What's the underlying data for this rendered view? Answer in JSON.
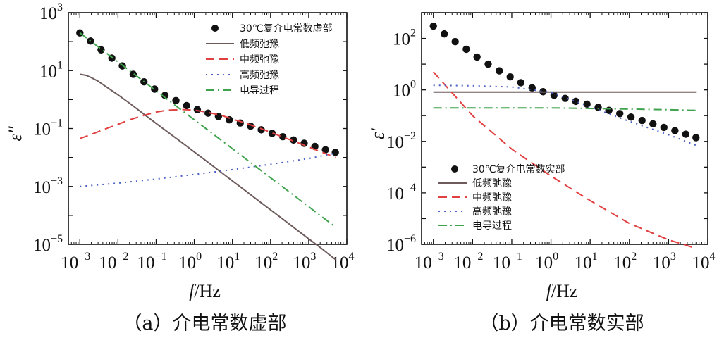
{
  "chart_data": [
    {
      "type": "line",
      "caption": "（a）介电常数虚部",
      "xlabel": "f/Hz",
      "ylabel": "ε″",
      "xscale": "log",
      "yscale": "log",
      "xlim": [
        0.0005,
        10000
      ],
      "ylim": [
        1e-05,
        1000
      ],
      "xticks": [
        {
          "base": "10",
          "exp": "−3"
        },
        {
          "base": "10",
          "exp": "−2"
        },
        {
          "base": "10",
          "exp": "−1"
        },
        {
          "base": "10",
          "exp": "0"
        },
        {
          "base": "10",
          "exp": "1"
        },
        {
          "base": "10",
          "exp": "2"
        },
        {
          "base": "10",
          "exp": "3"
        },
        {
          "base": "10",
          "exp": "4"
        }
      ],
      "yticks": [
        {
          "base": "10",
          "exp": "−5"
        },
        {
          "base": "10",
          "exp": "−3"
        },
        {
          "base": "10",
          "exp": "−1"
        },
        {
          "base": "10",
          "exp": "1"
        },
        {
          "base": "10",
          "exp": "3"
        }
      ],
      "legend_position": "top-right",
      "series": [
        {
          "name": "30℃复介电常数虚部",
          "style": "dots",
          "color": "#111111",
          "x": [
            0.001,
            0.0019,
            0.0036,
            0.0069,
            0.013,
            0.025,
            0.048,
            0.091,
            0.17,
            0.33,
            0.63,
            1.2,
            2.3,
            4.3,
            8.3,
            16,
            30,
            57,
            110,
            210,
            400,
            760,
            1450,
            2750,
            5000
          ],
          "y": [
            200,
            105,
            52,
            27,
            14.5,
            7.5,
            4.1,
            2.3,
            1.4,
            0.92,
            0.62,
            0.45,
            0.34,
            0.26,
            0.2,
            0.155,
            0.12,
            0.09,
            0.068,
            0.052,
            0.04,
            0.031,
            0.024,
            0.0185,
            0.015
          ]
        },
        {
          "name": "低频弛豫",
          "style": "solid",
          "color": "#6e5c5c",
          "x": [
            0.001,
            0.0015,
            0.002,
            0.003,
            0.005,
            0.01,
            0.02,
            0.05,
            0.1,
            0.2,
            0.5,
            1,
            2,
            5,
            10,
            20,
            50,
            100,
            200,
            500,
            1000,
            2000,
            5000
          ],
          "y": [
            7.5,
            6.8,
            5.7,
            4.3,
            2.7,
            1.45,
            0.75,
            0.3,
            0.15,
            0.076,
            0.031,
            0.0155,
            0.0078,
            0.0031,
            0.00155,
            0.00078,
            0.00031,
            0.000155,
            7.8e-05,
            3.1e-05,
            1.55e-05,
            7.8e-06,
            3e-06
          ]
        },
        {
          "name": "中频弛豫",
          "style": "dashed",
          "color": "#e04040",
          "x": [
            0.001,
            0.002,
            0.005,
            0.01,
            0.02,
            0.05,
            0.1,
            0.2,
            0.5,
            1,
            2,
            5,
            10,
            20,
            50,
            100,
            200,
            500,
            1000,
            2000,
            5000
          ],
          "y": [
            0.045,
            0.063,
            0.1,
            0.14,
            0.2,
            0.29,
            0.37,
            0.43,
            0.45,
            0.43,
            0.37,
            0.29,
            0.21,
            0.16,
            0.105,
            0.074,
            0.052,
            0.033,
            0.023,
            0.016,
            0.01
          ]
        },
        {
          "name": "高频弛豫",
          "style": "dotted",
          "color": "#4a5fc4",
          "x": [
            0.001,
            0.01,
            0.1,
            1,
            10,
            100,
            1000,
            5000
          ],
          "y": [
            0.001,
            0.0013,
            0.0018,
            0.0026,
            0.0038,
            0.0058,
            0.0092,
            0.014
          ]
        },
        {
          "name": "电导过程",
          "style": "dashdot",
          "color": "#3fa34d",
          "x": [
            0.001,
            0.01,
            0.1,
            1,
            10,
            100,
            1000,
            5000
          ],
          "y": [
            200,
            20,
            2,
            0.2,
            0.02,
            0.002,
            0.0002,
            4e-05
          ]
        }
      ]
    },
    {
      "type": "line",
      "caption": "（b）介电常数实部",
      "xlabel": "f/Hz",
      "ylabel": "ε′",
      "xscale": "log",
      "yscale": "log",
      "xlim": [
        0.0005,
        10000
      ],
      "ylim": [
        1e-06,
        1000
      ],
      "xticks": [
        {
          "base": "10",
          "exp": "−3"
        },
        {
          "base": "10",
          "exp": "−2"
        },
        {
          "base": "10",
          "exp": "−1"
        },
        {
          "base": "10",
          "exp": "0"
        },
        {
          "base": "10",
          "exp": "1"
        },
        {
          "base": "10",
          "exp": "2"
        },
        {
          "base": "10",
          "exp": "3"
        },
        {
          "base": "10",
          "exp": "4"
        }
      ],
      "yticks": [
        {
          "base": "10",
          "exp": "−6"
        },
        {
          "base": "10",
          "exp": "−4"
        },
        {
          "base": "10",
          "exp": "−2"
        },
        {
          "base": "10",
          "exp": "0"
        },
        {
          "base": "10",
          "exp": "2"
        }
      ],
      "legend_position": "bottom-left",
      "series": [
        {
          "name": "30℃复介电常数实部",
          "style": "dots",
          "color": "#111111",
          "x": [
            0.001,
            0.0019,
            0.0036,
            0.0069,
            0.013,
            0.025,
            0.048,
            0.091,
            0.17,
            0.33,
            0.63,
            1.2,
            2.3,
            4.3,
            8.3,
            16,
            30,
            57,
            110,
            210,
            400,
            760,
            1450,
            2750,
            5000
          ],
          "y": [
            300,
            150,
            75,
            38,
            19,
            10,
            5.5,
            3.2,
            1.9,
            1.2,
            0.85,
            0.62,
            0.47,
            0.36,
            0.28,
            0.21,
            0.16,
            0.12,
            0.088,
            0.065,
            0.048,
            0.035,
            0.026,
            0.019,
            0.014
          ]
        },
        {
          "name": "低频弛豫",
          "style": "solid",
          "color": "#6e5c5c",
          "x": [
            0.001,
            5000
          ],
          "y": [
            0.82,
            0.82
          ]
        },
        {
          "name": "中频弛豫",
          "style": "dashed",
          "color": "#e04040",
          "x": [
            0.001,
            0.01,
            0.1,
            1,
            10,
            100,
            1000,
            5000
          ],
          "y": [
            5,
            0.1,
            0.005,
            0.00045,
            5e-05,
            6.5e-06,
            1.5e-06,
            7e-07
          ]
        },
        {
          "name": "高频弛豫",
          "style": "dotted",
          "color": "#4a5fc4",
          "x": [
            0.001,
            0.01,
            0.1,
            1,
            10,
            100,
            1000,
            5000
          ],
          "y": [
            1.5,
            1.45,
            1.3,
            0.8,
            0.22,
            0.06,
            0.018,
            0.007
          ]
        },
        {
          "name": "电导过程",
          "style": "dashdot",
          "color": "#3fa34d",
          "x": [
            0.001,
            0.01,
            0.1,
            1,
            10,
            100,
            1000,
            5000
          ],
          "y": [
            0.2,
            0.2,
            0.2,
            0.2,
            0.19,
            0.18,
            0.17,
            0.16
          ]
        }
      ]
    }
  ]
}
